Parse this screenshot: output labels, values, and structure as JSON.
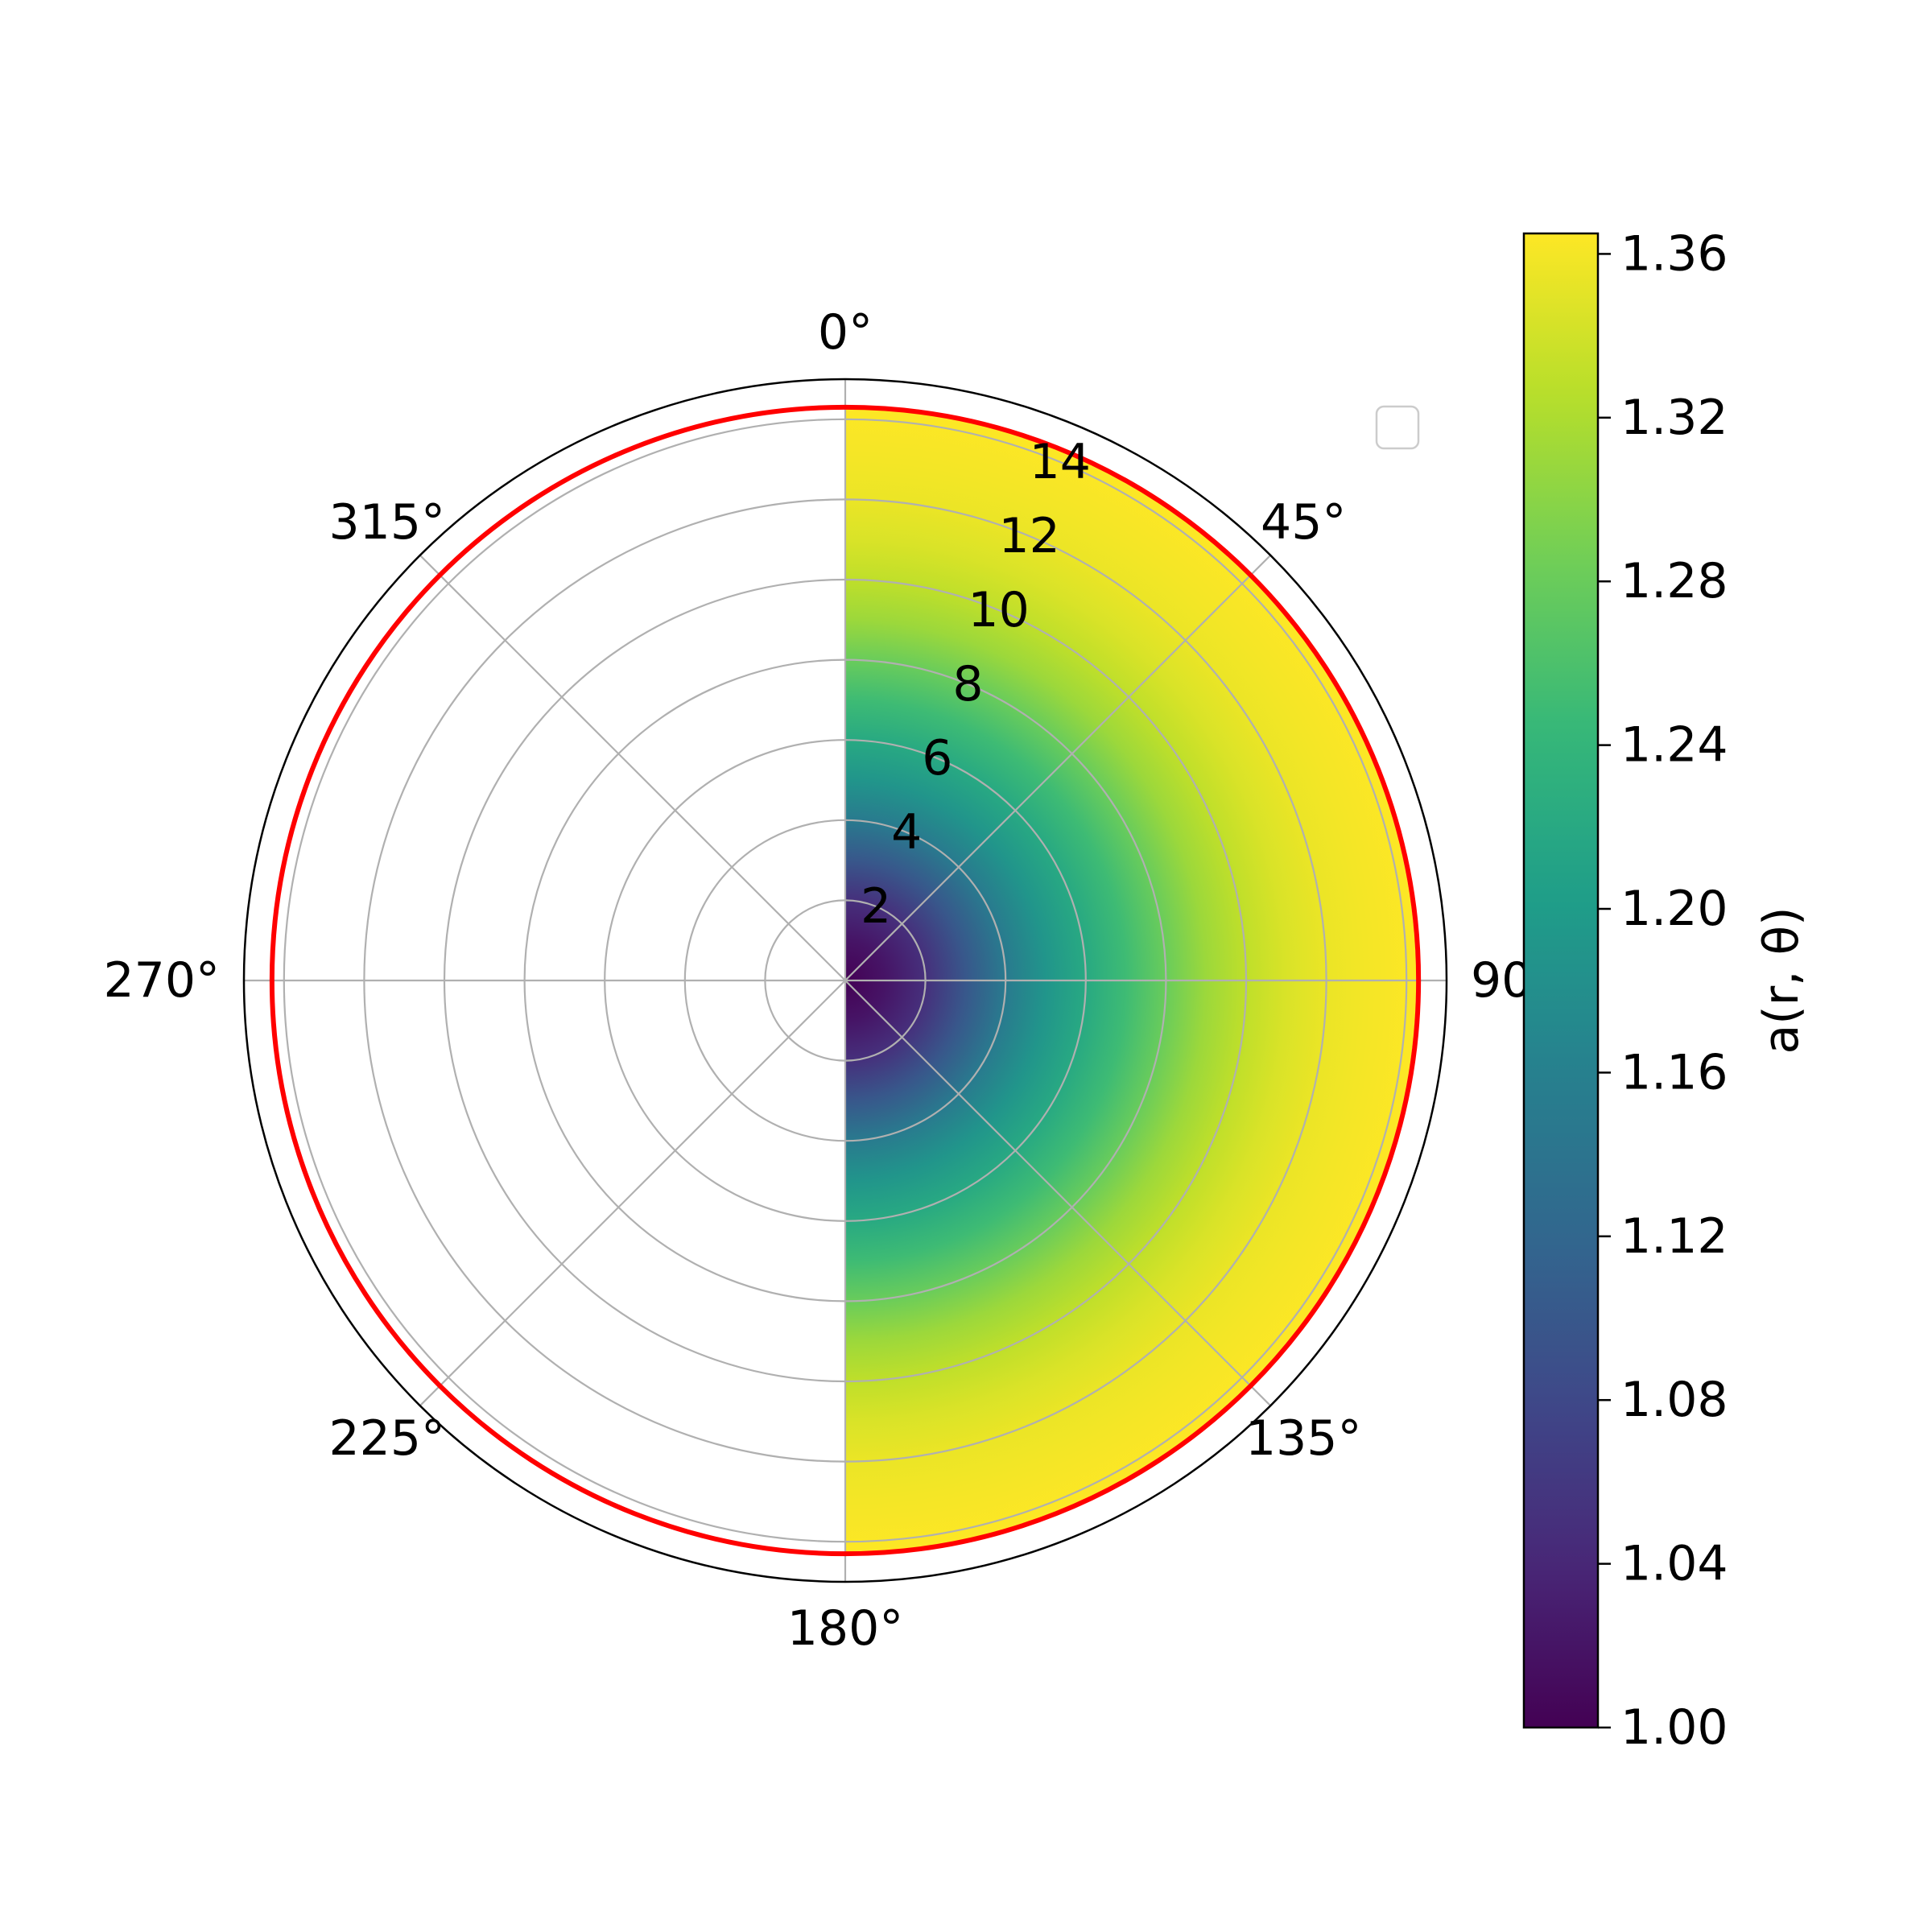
{
  "chart_data": {
    "type": "heatmap",
    "projection": "polar",
    "theta_zero_location": "top",
    "theta_direction": "clockwise",
    "data_sector": {
      "theta_deg": [
        0,
        180
      ],
      "r": [
        0,
        14.25
      ]
    },
    "field": {
      "colormap": "viridis",
      "r_samples": [
        0,
        1,
        2,
        3,
        4,
        5,
        6,
        7,
        8,
        9,
        10,
        11,
        12,
        13,
        14.25
      ],
      "values": [
        1.0,
        1.02,
        1.05,
        1.1,
        1.15,
        1.19,
        1.22,
        1.25,
        1.28,
        1.31,
        1.33,
        1.345,
        1.355,
        1.36,
        1.365
      ]
    },
    "rlim": [
      0,
      15
    ],
    "r_ticks": [
      2,
      4,
      6,
      8,
      10,
      12,
      14
    ],
    "r_tick_labels": [
      "2",
      "4",
      "6",
      "8",
      "10",
      "12",
      "14"
    ],
    "r_tick_label_angle_deg": 22.5,
    "theta_ticks_deg": [
      0,
      45,
      90,
      135,
      180,
      225,
      270,
      315
    ],
    "theta_tick_labels": [
      "0°",
      "45°",
      "90°",
      "135°",
      "180°",
      "225°",
      "270°",
      "315°"
    ],
    "reference_circle": {
      "r": 14.3,
      "color": "#ff0000"
    },
    "grid": true,
    "grid_color": "#b0b0b0",
    "legend": {
      "placement": "upper-right",
      "entries": []
    },
    "colorbar": {
      "label": "a(r, θ)",
      "vmin": 1.0,
      "vmax": 1.365,
      "ticks": [
        1.0,
        1.04,
        1.08,
        1.12,
        1.16,
        1.2,
        1.24,
        1.28,
        1.32,
        1.36
      ],
      "tick_labels": [
        "1.00",
        "1.04",
        "1.08",
        "1.12",
        "1.16",
        "1.20",
        "1.24",
        "1.28",
        "1.32",
        "1.36"
      ]
    }
  },
  "colors": {
    "viridis": [
      "#440154",
      "#482878",
      "#3e4989",
      "#31688e",
      "#26828e",
      "#1f9e89",
      "#35b779",
      "#6ece58",
      "#b5de2b",
      "#fde725"
    ]
  }
}
